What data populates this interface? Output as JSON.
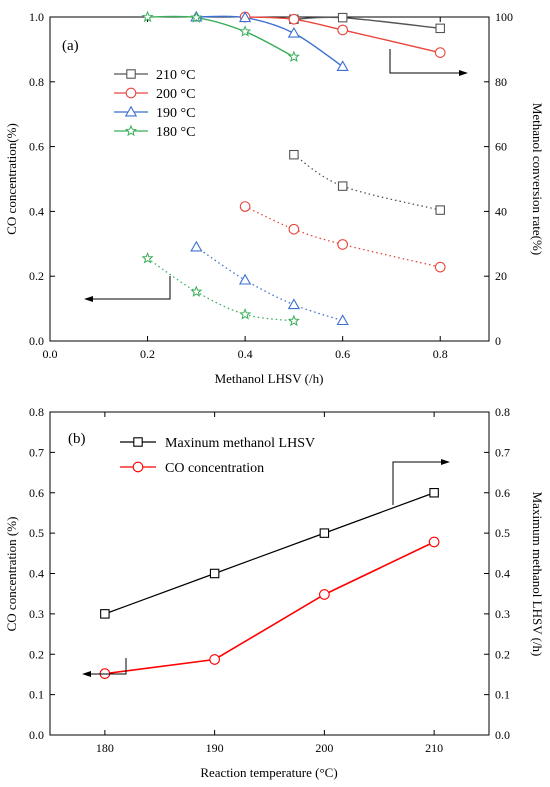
{
  "chart_data": [
    {
      "panel": "(a)",
      "type": "line",
      "xlabel": "Methanol LHSV (/h)",
      "ylabel": "CO concentration(%)",
      "y2label": "Methanol conversion rate(%)",
      "xlim": [
        0.0,
        0.9
      ],
      "ylim": [
        0.0,
        1.0
      ],
      "y2lim": [
        0,
        100
      ],
      "xticks": [
        "0.0",
        "0.2",
        "0.4",
        "0.6",
        "0.8"
      ],
      "yticks": [
        "0.0",
        "0.2",
        "0.4",
        "0.6",
        "0.8",
        "1.0"
      ],
      "y2ticks": [
        "0",
        "20",
        "40",
        "60",
        "80",
        "100"
      ],
      "legend_position": "upper-left",
      "colors": {
        "210": "#555555",
        "200": "#e8463c",
        "190": "#3b6fd1",
        "180": "#3aae5a"
      },
      "series": [
        {
          "name": "210 °C",
          "marker": "square",
          "axis": "right",
          "style": "solid",
          "x": [
            0.5,
            0.6,
            0.8
          ],
          "y": [
            99.3,
            99.8,
            96.5
          ]
        },
        {
          "name": "200 °C",
          "marker": "circle",
          "axis": "right",
          "style": "solid",
          "x": [
            0.4,
            0.5,
            0.6,
            0.8
          ],
          "y": [
            100,
            99.3,
            96,
            89
          ]
        },
        {
          "name": "190 °C",
          "marker": "triangle",
          "axis": "right",
          "style": "solid",
          "x": [
            0.3,
            0.4,
            0.5,
            0.6
          ],
          "y": [
            100,
            99.8,
            95,
            84.7
          ]
        },
        {
          "name": "180 °C",
          "marker": "star",
          "axis": "right",
          "style": "solid",
          "x": [
            0.2,
            0.3,
            0.4,
            0.5
          ],
          "y": [
            100,
            99.8,
            95.5,
            87.7
          ]
        },
        {
          "name": "210 °C",
          "marker": "square",
          "axis": "left",
          "style": "dotted",
          "x": [
            0.5,
            0.6,
            0.8
          ],
          "y": [
            0.575,
            0.478,
            0.404
          ]
        },
        {
          "name": "200 °C",
          "marker": "circle",
          "axis": "left",
          "style": "dotted",
          "x": [
            0.4,
            0.5,
            0.6,
            0.8
          ],
          "y": [
            0.415,
            0.345,
            0.298,
            0.228
          ]
        },
        {
          "name": "190 °C",
          "marker": "triangle",
          "axis": "left",
          "style": "dotted",
          "x": [
            0.3,
            0.4,
            0.5,
            0.6
          ],
          "y": [
            0.29,
            0.188,
            0.112,
            0.063
          ]
        },
        {
          "name": "180 °C",
          "marker": "star",
          "axis": "left",
          "style": "dotted",
          "x": [
            0.2,
            0.3,
            0.4,
            0.5
          ],
          "y": [
            0.255,
            0.152,
            0.082,
            0.062
          ]
        }
      ]
    },
    {
      "panel": "(b)",
      "type": "line",
      "xlabel": "Reaction temperature (°C)",
      "ylabel": "CO concentration (%)",
      "y2label": "Maximum methanol LHSV (/h)",
      "xlim": [
        175,
        215
      ],
      "ylim": [
        0.0,
        0.8
      ],
      "y2lim": [
        0.0,
        0.8
      ],
      "xticks": [
        "180",
        "190",
        "200",
        "210"
      ],
      "yticks": [
        "0.0",
        "0.1",
        "0.2",
        "0.3",
        "0.4",
        "0.5",
        "0.6",
        "0.7",
        "0.8"
      ],
      "y2ticks": [
        "0.0",
        "0.1",
        "0.2",
        "0.3",
        "0.4",
        "0.5",
        "0.6",
        "0.7",
        "0.8"
      ],
      "legend_position": "upper-left",
      "colors": {
        "lhsv": "#000000",
        "co": "#ff0000"
      },
      "series": [
        {
          "name": "Maxinum methanol LHSV",
          "marker": "square",
          "axis": "right",
          "x": [
            180,
            190,
            200,
            210
          ],
          "y": [
            0.3,
            0.4,
            0.5,
            0.6
          ]
        },
        {
          "name": "CO concentration",
          "marker": "circle",
          "axis": "left",
          "x": [
            180,
            190,
            200,
            210
          ],
          "y": [
            0.152,
            0.187,
            0.348,
            0.478
          ]
        }
      ]
    }
  ]
}
